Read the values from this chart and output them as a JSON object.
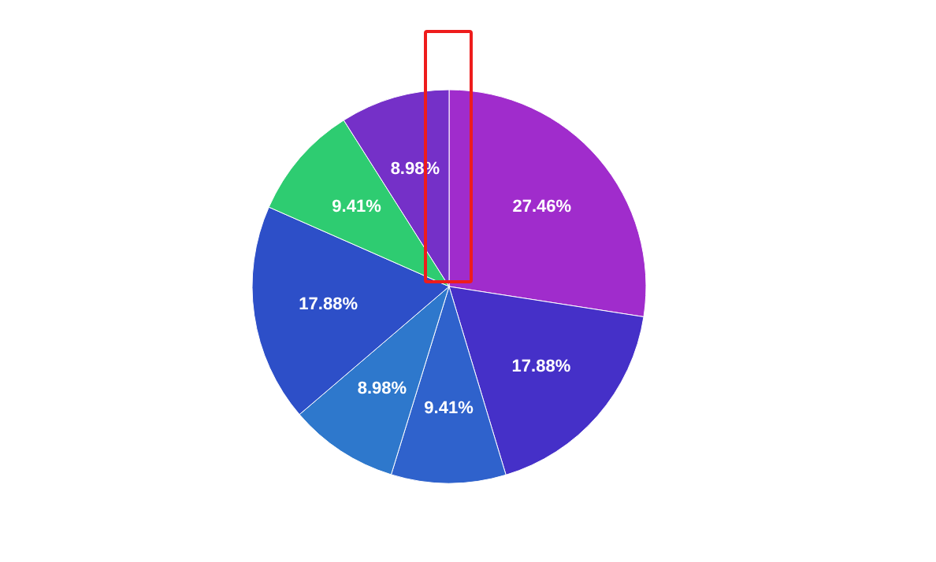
{
  "chart_data": {
    "type": "pie",
    "categories": [
      null,
      null,
      null,
      null,
      null,
      null,
      null
    ],
    "values": [
      27.46,
      17.88,
      9.41,
      8.98,
      17.88,
      9.41,
      8.98
    ],
    "colors": [
      "#a02ccc",
      "#4530c8",
      "#2f62cc",
      "#2e78cc",
      "#2d4fc8",
      "#2ecc71",
      "#7530c8"
    ],
    "value_labels": [
      "27.46%",
      "17.88%",
      "9.41%",
      "8.98%",
      "17.88%",
      "9.41%",
      "8.98%"
    ],
    "legend": false
  }
}
